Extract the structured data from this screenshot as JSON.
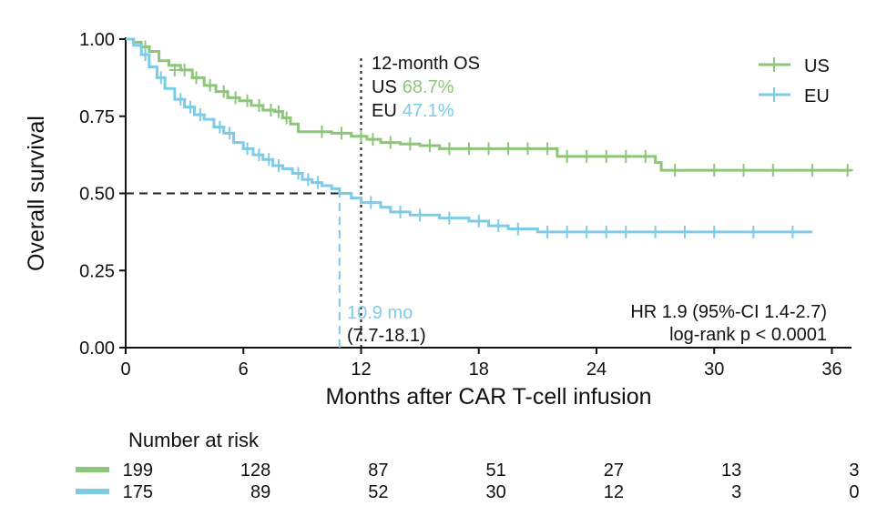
{
  "chart_data": {
    "type": "line",
    "subtype": "kaplan-meier",
    "xlabel": "Months after CAR T-cell infusion",
    "ylabel": "Overall survival",
    "xlim": [
      0,
      37
    ],
    "ylim": [
      0,
      1
    ],
    "x_ticks": [
      0,
      6,
      12,
      18,
      24,
      30,
      36
    ],
    "y_ticks": [
      0.0,
      0.25,
      0.5,
      0.75,
      1.0
    ],
    "x_tick_labels": [
      "0",
      "6",
      "12",
      "18",
      "24",
      "30",
      "36"
    ],
    "y_tick_labels": [
      "0.00",
      "0.25",
      "0.50",
      "0.75",
      "1.00"
    ],
    "grid": false,
    "legend_position": "top-right",
    "series": [
      {
        "name": "US",
        "color": "#8dc679",
        "steps": [
          [
            0,
            1.0
          ],
          [
            0.4,
            0.99
          ],
          [
            0.8,
            0.975
          ],
          [
            1.2,
            0.96
          ],
          [
            1.7,
            0.93
          ],
          [
            2.2,
            0.915
          ],
          [
            2.8,
            0.9
          ],
          [
            3.4,
            0.875
          ],
          [
            4.0,
            0.85
          ],
          [
            4.6,
            0.83
          ],
          [
            5.2,
            0.81
          ],
          [
            5.8,
            0.8
          ],
          [
            6.4,
            0.785
          ],
          [
            7.0,
            0.77
          ],
          [
            7.6,
            0.765
          ],
          [
            8.0,
            0.745
          ],
          [
            8.4,
            0.725
          ],
          [
            8.8,
            0.7
          ],
          [
            10.5,
            0.695
          ],
          [
            11.5,
            0.685
          ],
          [
            12.3,
            0.675
          ],
          [
            13.0,
            0.665
          ],
          [
            14.0,
            0.66
          ],
          [
            15.0,
            0.655
          ],
          [
            16.0,
            0.645
          ],
          [
            17.0,
            0.645
          ],
          [
            22.0,
            0.62
          ],
          [
            27.0,
            0.6
          ],
          [
            27.3,
            0.575
          ],
          [
            37.0,
            0.575
          ]
        ],
        "censors": [
          [
            1.0,
            0.975
          ],
          [
            2.5,
            0.9
          ],
          [
            3.0,
            0.9
          ],
          [
            3.6,
            0.875
          ],
          [
            4.3,
            0.85
          ],
          [
            5.0,
            0.83
          ],
          [
            5.6,
            0.81
          ],
          [
            6.2,
            0.8
          ],
          [
            6.8,
            0.785
          ],
          [
            7.4,
            0.77
          ],
          [
            7.8,
            0.765
          ],
          [
            8.2,
            0.745
          ],
          [
            10.0,
            0.7
          ],
          [
            11.0,
            0.695
          ],
          [
            12.0,
            0.685
          ],
          [
            12.6,
            0.675
          ],
          [
            13.5,
            0.665
          ],
          [
            14.5,
            0.66
          ],
          [
            15.5,
            0.655
          ],
          [
            16.5,
            0.645
          ],
          [
            17.5,
            0.645
          ],
          [
            18.5,
            0.645
          ],
          [
            19.5,
            0.645
          ],
          [
            20.5,
            0.645
          ],
          [
            21.5,
            0.645
          ],
          [
            22.5,
            0.62
          ],
          [
            23.5,
            0.62
          ],
          [
            24.5,
            0.62
          ],
          [
            25.5,
            0.62
          ],
          [
            26.5,
            0.62
          ],
          [
            28.0,
            0.575
          ],
          [
            30.0,
            0.575
          ],
          [
            31.5,
            0.575
          ],
          [
            33.0,
            0.575
          ],
          [
            35.0,
            0.575
          ],
          [
            36.8,
            0.575
          ]
        ]
      },
      {
        "name": "EU",
        "color": "#7ecbe6",
        "steps": [
          [
            0,
            1.0
          ],
          [
            0.4,
            0.98
          ],
          [
            0.8,
            0.95
          ],
          [
            1.2,
            0.91
          ],
          [
            1.6,
            0.875
          ],
          [
            2.0,
            0.84
          ],
          [
            2.5,
            0.805
          ],
          [
            3.0,
            0.78
          ],
          [
            3.5,
            0.755
          ],
          [
            4.0,
            0.74
          ],
          [
            4.5,
            0.715
          ],
          [
            5.0,
            0.695
          ],
          [
            5.5,
            0.665
          ],
          [
            6.0,
            0.645
          ],
          [
            6.5,
            0.625
          ],
          [
            7.0,
            0.61
          ],
          [
            7.5,
            0.59
          ],
          [
            8.0,
            0.58
          ],
          [
            8.5,
            0.565
          ],
          [
            9.0,
            0.545
          ],
          [
            9.5,
            0.535
          ],
          [
            10.0,
            0.525
          ],
          [
            10.5,
            0.515
          ],
          [
            10.9,
            0.5
          ],
          [
            11.5,
            0.485
          ],
          [
            12.0,
            0.47
          ],
          [
            13.0,
            0.455
          ],
          [
            13.5,
            0.44
          ],
          [
            14.5,
            0.43
          ],
          [
            16.0,
            0.42
          ],
          [
            17.5,
            0.41
          ],
          [
            18.5,
            0.395
          ],
          [
            19.5,
            0.385
          ],
          [
            21.0,
            0.375
          ],
          [
            35.0,
            0.375
          ]
        ],
        "censors": [
          [
            1.0,
            0.95
          ],
          [
            1.8,
            0.875
          ],
          [
            2.8,
            0.805
          ],
          [
            3.3,
            0.78
          ],
          [
            3.8,
            0.755
          ],
          [
            4.8,
            0.715
          ],
          [
            5.3,
            0.695
          ],
          [
            6.2,
            0.645
          ],
          [
            6.8,
            0.625
          ],
          [
            7.3,
            0.61
          ],
          [
            7.8,
            0.59
          ],
          [
            8.8,
            0.565
          ],
          [
            9.3,
            0.545
          ],
          [
            9.8,
            0.535
          ],
          [
            12.5,
            0.47
          ],
          [
            14.0,
            0.44
          ],
          [
            15.0,
            0.43
          ],
          [
            16.5,
            0.42
          ],
          [
            18.0,
            0.41
          ],
          [
            19.0,
            0.395
          ],
          [
            20.0,
            0.385
          ],
          [
            21.5,
            0.375
          ],
          [
            22.5,
            0.375
          ],
          [
            23.5,
            0.375
          ],
          [
            24.5,
            0.375
          ],
          [
            25.5,
            0.375
          ],
          [
            27.0,
            0.375
          ],
          [
            28.5,
            0.375
          ],
          [
            30.0,
            0.375
          ],
          [
            32.0,
            0.375
          ],
          [
            34.0,
            0.375
          ]
        ]
      }
    ],
    "reference_lines": [
      {
        "kind": "horizontal-dashed",
        "y": 0.5,
        "from_x": 0,
        "to_x": 10.9,
        "color": "#222222"
      },
      {
        "kind": "vertical-dashed",
        "x": 10.9,
        "from_y": 0,
        "to_y": 0.5,
        "color": "#7ecbe6"
      },
      {
        "kind": "vertical-dotted",
        "x": 12,
        "from_y": 0,
        "to_y": 0.95,
        "color": "#222222"
      }
    ],
    "annotations": {
      "os_title": "12-month OS",
      "us_label": "US",
      "us_value": "68.7%",
      "eu_label": "EU",
      "eu_value": "47.1%",
      "median_value": "10.9 mo",
      "median_ci": "(7.7-18.1)",
      "hr_text": "HR 1.9 (95%-CI 1.4-2.7)",
      "p_text": "log-rank p < 0.0001"
    },
    "risk_table": {
      "title": "Number at risk",
      "times": [
        0,
        6,
        12,
        18,
        24,
        30,
        36
      ],
      "rows": [
        {
          "series": "US",
          "values": [
            199,
            128,
            87,
            51,
            27,
            13,
            3
          ]
        },
        {
          "series": "EU",
          "values": [
            175,
            89,
            52,
            30,
            12,
            3,
            0
          ]
        }
      ]
    }
  }
}
